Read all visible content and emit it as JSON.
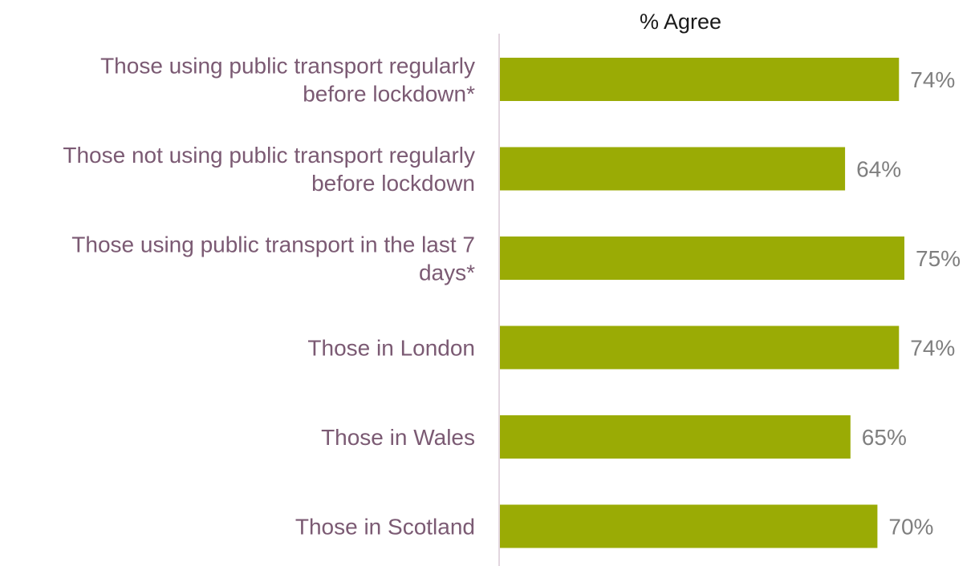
{
  "chart_data": {
    "type": "bar",
    "orientation": "horizontal",
    "title": "% Agree",
    "categories": [
      [
        "Those using public transport regularly",
        "before lockdown*"
      ],
      [
        "Those not using public transport regularly",
        "before lockdown"
      ],
      [
        "Those using public transport in the last 7",
        "days*"
      ],
      [
        "Those in London"
      ],
      [
        "Those in Wales"
      ],
      [
        "Those in Scotland"
      ]
    ],
    "values": [
      74,
      64,
      75,
      74,
      65,
      70
    ],
    "value_labels": [
      "74%",
      "64%",
      "75%",
      "74%",
      "65%",
      "70%"
    ],
    "xlim": [
      0,
      100
    ],
    "grid": false,
    "legend": "none",
    "colors": {
      "bar": "#9aab05",
      "category_text": "#7b5a73",
      "value_text": "#7f7f7f",
      "axis": "#e2d6df"
    }
  }
}
